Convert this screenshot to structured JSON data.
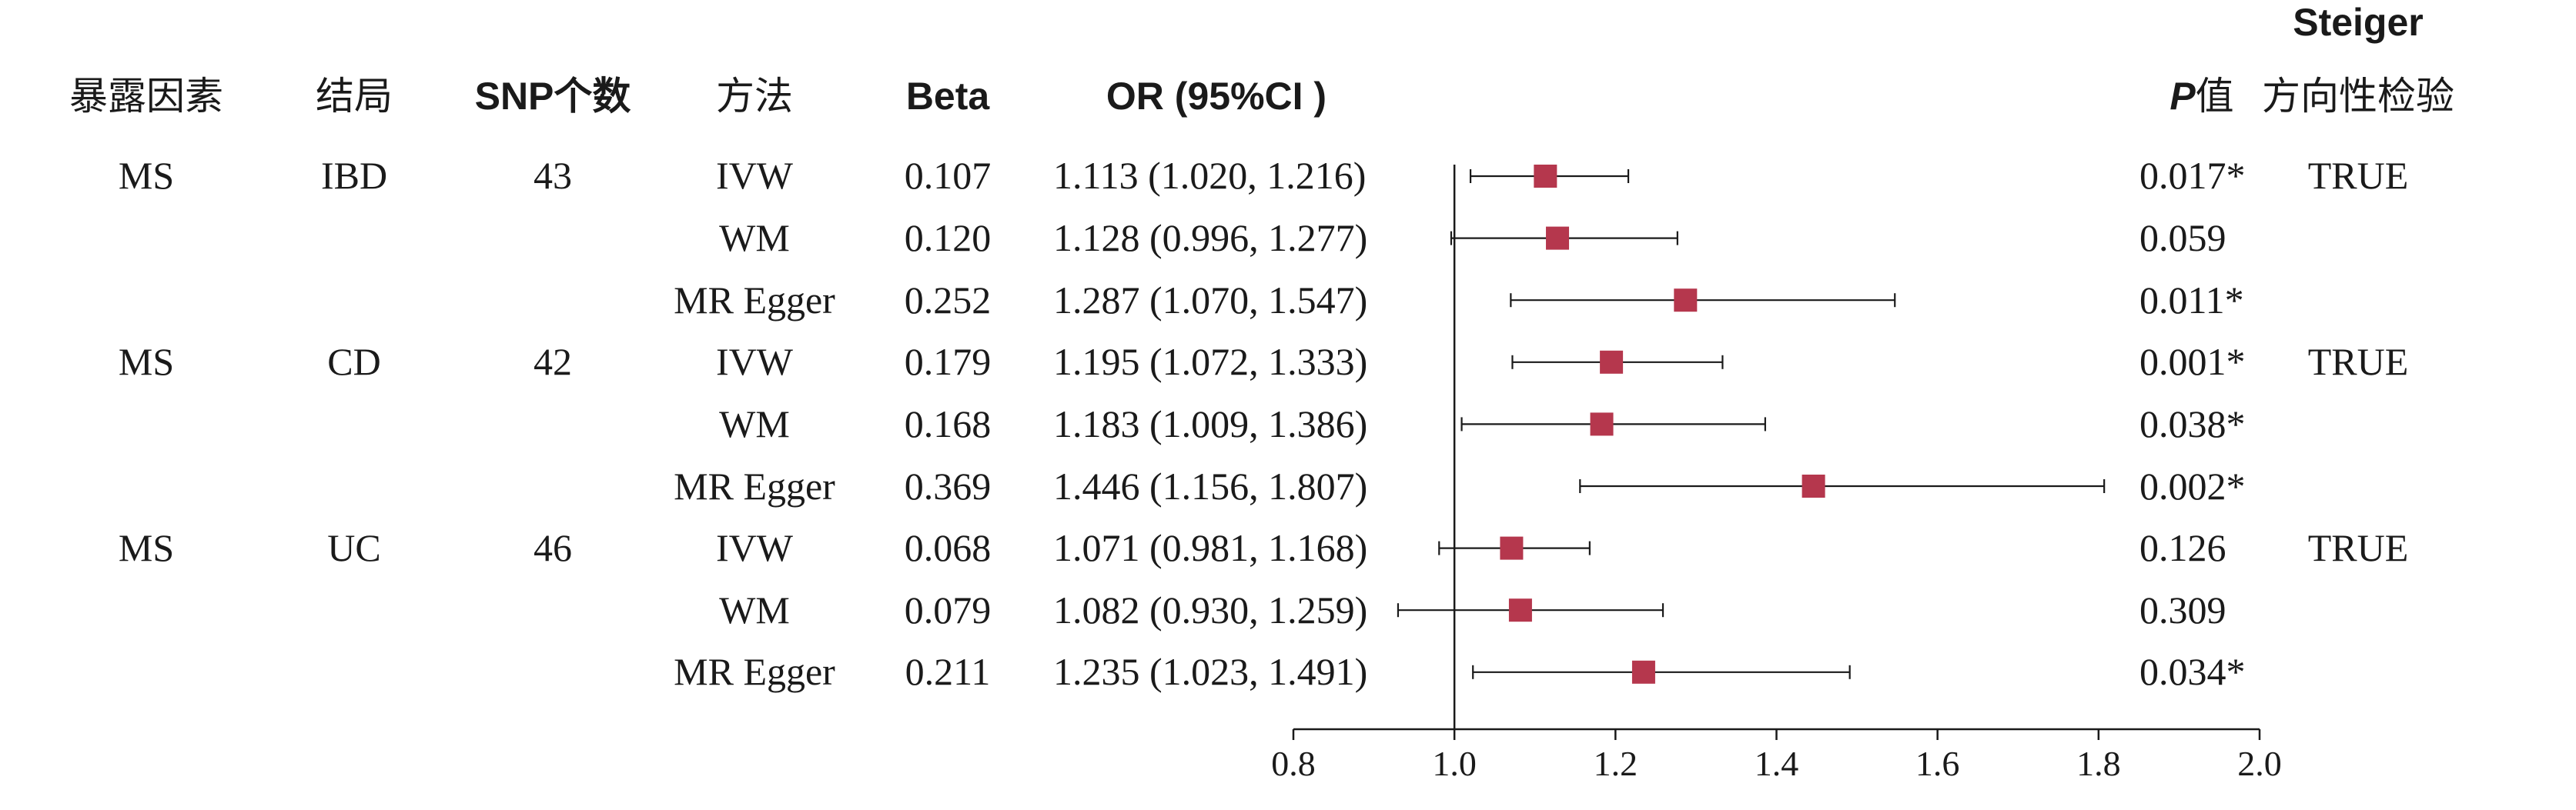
{
  "headers": {
    "exposure": "暴露因素",
    "outcome": "结局",
    "snp_count": "SNP个数",
    "method": "方法",
    "beta": "Beta",
    "or_ci": "OR (95%CI )",
    "p_italic": "P",
    "p_suffix": "值",
    "steiger_line1": "Steiger",
    "steiger_line2": "方向性检验"
  },
  "rows": [
    {
      "exposure": "MS",
      "outcome": "IBD",
      "snp": "43",
      "method": "IVW",
      "beta": "0.107",
      "or_text": "1.113 (1.020, 1.216)",
      "p": "0.017*",
      "steiger": "TRUE"
    },
    {
      "exposure": "",
      "outcome": "",
      "snp": "",
      "method": "WM",
      "beta": "0.120",
      "or_text": "1.128 (0.996, 1.277)",
      "p": "0.059",
      "steiger": ""
    },
    {
      "exposure": "",
      "outcome": "",
      "snp": "",
      "method": "MR Egger",
      "beta": "0.252",
      "or_text": "1.287 (1.070, 1.547)",
      "p": "0.011*",
      "steiger": ""
    },
    {
      "exposure": "MS",
      "outcome": "CD",
      "snp": "42",
      "method": "IVW",
      "beta": "0.179",
      "or_text": "1.195 (1.072, 1.333)",
      "p": "0.001*",
      "steiger": "TRUE"
    },
    {
      "exposure": "",
      "outcome": "",
      "snp": "",
      "method": "WM",
      "beta": "0.168",
      "or_text": "1.183 (1.009, 1.386)",
      "p": "0.038*",
      "steiger": ""
    },
    {
      "exposure": "",
      "outcome": "",
      "snp": "",
      "method": "MR Egger",
      "beta": "0.369",
      "or_text": "1.446 (1.156, 1.807)",
      "p": "0.002*",
      "steiger": ""
    },
    {
      "exposure": "MS",
      "outcome": "UC",
      "snp": "46",
      "method": "IVW",
      "beta": "0.068",
      "or_text": "1.071 (0.981, 1.168)",
      "p": "0.126",
      "steiger": "TRUE"
    },
    {
      "exposure": "",
      "outcome": "",
      "snp": "",
      "method": "WM",
      "beta": "0.079",
      "or_text": "1.082 (0.930, 1.259)",
      "p": "0.309",
      "steiger": ""
    },
    {
      "exposure": "",
      "outcome": "",
      "snp": "",
      "method": "MR Egger",
      "beta": "0.211",
      "or_text": "1.235 (1.023, 1.491)",
      "p": "0.034*",
      "steiger": ""
    }
  ],
  "chart_data": {
    "type": "scatter",
    "subtype": "forest-plot",
    "xlim": [
      0.8,
      2.0
    ],
    "xticks": [
      "0.8",
      "1.0",
      "1.2",
      "1.4",
      "1.6",
      "1.8",
      "2.0"
    ],
    "reference_line": 1.0,
    "marker_color": "#b5374d",
    "points": [
      {
        "or": 1.113,
        "lo": 1.02,
        "hi": 1.216
      },
      {
        "or": 1.128,
        "lo": 0.996,
        "hi": 1.277
      },
      {
        "or": 1.287,
        "lo": 1.07,
        "hi": 1.547
      },
      {
        "or": 1.195,
        "lo": 1.072,
        "hi": 1.333
      },
      {
        "or": 1.183,
        "lo": 1.009,
        "hi": 1.386
      },
      {
        "or": 1.446,
        "lo": 1.156,
        "hi": 1.807
      },
      {
        "or": 1.071,
        "lo": 0.981,
        "hi": 1.168
      },
      {
        "or": 1.082,
        "lo": 0.93,
        "hi": 1.259
      },
      {
        "or": 1.235,
        "lo": 1.023,
        "hi": 1.491
      }
    ]
  }
}
